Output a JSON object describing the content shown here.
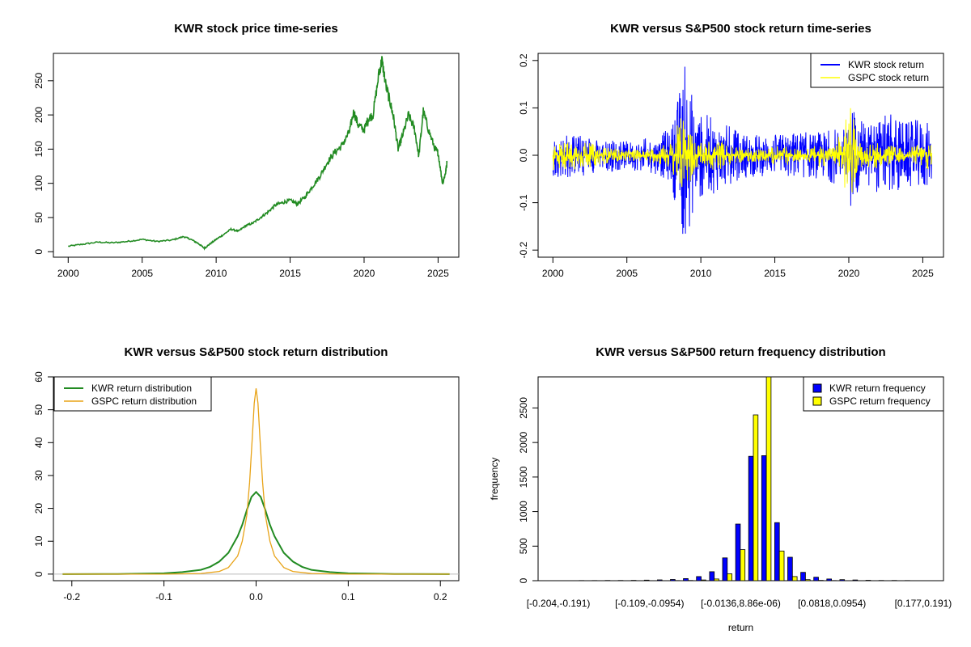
{
  "chart_data": [
    {
      "type": "line",
      "title": "KWR stock price time-series",
      "xlabel": "",
      "ylabel": "",
      "xlim": [
        1999.0,
        2026.4
      ],
      "ylim": [
        -8,
        290
      ],
      "xticks": [
        "2000",
        "2005",
        "2010",
        "2015",
        "2020",
        "2025"
      ],
      "yticks": [
        "0",
        "50",
        "100",
        "150",
        "200",
        "250"
      ],
      "series": [
        {
          "color": "#228B22",
          "x": [
            2000.0,
            2001.0,
            2002.0,
            2003.0,
            2004.0,
            2005.0,
            2006.0,
            2007.0,
            2007.8,
            2008.3,
            2008.8,
            2009.2,
            2009.5,
            2010.0,
            2010.5,
            2011.0,
            2011.5,
            2012.0,
            2012.5,
            2013.0,
            2013.5,
            2014.0,
            2014.5,
            2015.0,
            2015.5,
            2016.0,
            2016.5,
            2017.0,
            2017.5,
            2018.0,
            2018.5,
            2019.0,
            2019.3,
            2019.6,
            2020.0,
            2020.3,
            2020.6,
            2021.0,
            2021.2,
            2021.5,
            2021.8,
            2022.0,
            2022.3,
            2022.6,
            2023.0,
            2023.4,
            2023.7,
            2024.0,
            2024.4,
            2024.8,
            2025.0,
            2025.3,
            2025.5,
            2025.6
          ],
          "y": [
            8,
            11,
            14,
            13,
            15,
            18,
            15,
            17,
            22,
            18,
            12,
            5,
            10,
            18,
            25,
            33,
            30,
            38,
            42,
            50,
            58,
            68,
            72,
            75,
            70,
            80,
            95,
            110,
            130,
            145,
            155,
            175,
            205,
            185,
            178,
            195,
            200,
            260,
            280,
            240,
            215,
            195,
            150,
            170,
            200,
            180,
            140,
            205,
            175,
            150,
            145,
            100,
            115,
            130
          ]
        }
      ]
    },
    {
      "type": "line",
      "title": "KWR versus S&P500 stock return time-series",
      "xlabel": "",
      "ylabel": "",
      "xlim": [
        1999.0,
        2026.4
      ],
      "ylim": [
        -0.215,
        0.215
      ],
      "xticks": [
        "2000",
        "2005",
        "2010",
        "2015",
        "2020",
        "2025"
      ],
      "yticks": [
        "-0.2",
        "-0.1",
        "0.0",
        "0.1",
        "0.2"
      ],
      "legend_position": "top-right",
      "series": [
        {
          "name": "KWR stock return",
          "color": "#0000FF",
          "envelope": [
            [
              2000.0,
              0.045
            ],
            [
              2001.0,
              0.05
            ],
            [
              2002.0,
              0.045
            ],
            [
              2003.0,
              0.035
            ],
            [
              2004.0,
              0.035
            ],
            [
              2005.0,
              0.03
            ],
            [
              2006.0,
              0.035
            ],
            [
              2007.0,
              0.04
            ],
            [
              2008.0,
              0.06
            ],
            [
              2008.7,
              0.17
            ],
            [
              2009.0,
              0.2
            ],
            [
              2009.5,
              0.12
            ],
            [
              2010.0,
              0.09
            ],
            [
              2011.0,
              0.08
            ],
            [
              2012.0,
              0.06
            ],
            [
              2013.0,
              0.05
            ],
            [
              2014.0,
              0.045
            ],
            [
              2015.0,
              0.045
            ],
            [
              2016.0,
              0.05
            ],
            [
              2017.0,
              0.05
            ],
            [
              2018.0,
              0.05
            ],
            [
              2019.0,
              0.06
            ],
            [
              2020.0,
              0.06
            ],
            [
              2020.2,
              0.14
            ],
            [
              2020.5,
              0.08
            ],
            [
              2021.0,
              0.07
            ],
            [
              2022.0,
              0.08
            ],
            [
              2023.0,
              0.09
            ],
            [
              2024.0,
              0.07
            ],
            [
              2025.0,
              0.08
            ],
            [
              2025.6,
              0.06
            ]
          ]
        },
        {
          "name": "GSPC stock return",
          "color": "#FFFF00",
          "envelope": [
            [
              2000.0,
              0.035
            ],
            [
              2001.0,
              0.03
            ],
            [
              2002.0,
              0.03
            ],
            [
              2003.0,
              0.022
            ],
            [
              2004.0,
              0.015
            ],
            [
              2005.0,
              0.012
            ],
            [
              2006.0,
              0.012
            ],
            [
              2007.0,
              0.018
            ],
            [
              2008.0,
              0.03
            ],
            [
              2008.8,
              0.095
            ],
            [
              2009.2,
              0.06
            ],
            [
              2009.6,
              0.035
            ],
            [
              2010.0,
              0.025
            ],
            [
              2011.0,
              0.035
            ],
            [
              2012.0,
              0.02
            ],
            [
              2013.0,
              0.015
            ],
            [
              2014.0,
              0.014
            ],
            [
              2015.0,
              0.02
            ],
            [
              2016.0,
              0.02
            ],
            [
              2017.0,
              0.01
            ],
            [
              2018.0,
              0.025
            ],
            [
              2019.0,
              0.02
            ],
            [
              2020.2,
              0.11
            ],
            [
              2020.5,
              0.04
            ],
            [
              2021.0,
              0.02
            ],
            [
              2022.0,
              0.03
            ],
            [
              2023.0,
              0.02
            ],
            [
              2024.0,
              0.015
            ],
            [
              2025.3,
              0.035
            ],
            [
              2025.6,
              0.02
            ]
          ]
        }
      ]
    },
    {
      "type": "line",
      "title": "KWR versus S&P500 stock return distribution",
      "xlabel": "",
      "ylabel": "",
      "xlim": [
        -0.22,
        0.22
      ],
      "ylim": [
        -2,
        60
      ],
      "xticks": [
        "-0.2",
        "-0.1",
        "0.0",
        "0.1",
        "0.2"
      ],
      "yticks": [
        "0",
        "10",
        "20",
        "30",
        "40",
        "50",
        "60"
      ],
      "legend_position": "top-left",
      "series": [
        {
          "name": "KWR return distribution",
          "color": "#228B22",
          "x": [
            -0.21,
            -0.15,
            -0.1,
            -0.08,
            -0.06,
            -0.05,
            -0.04,
            -0.03,
            -0.02,
            -0.015,
            -0.01,
            -0.005,
            0.0,
            0.005,
            0.01,
            0.015,
            0.02,
            0.03,
            0.04,
            0.05,
            0.06,
            0.08,
            0.1,
            0.15,
            0.21
          ],
          "y": [
            0.0,
            0.05,
            0.25,
            0.6,
            1.3,
            2.2,
            3.8,
            6.5,
            11.5,
            15.0,
            19.5,
            23.5,
            25.0,
            23.5,
            19.5,
            15.0,
            11.5,
            6.5,
            3.8,
            2.2,
            1.3,
            0.6,
            0.25,
            0.05,
            0.0
          ]
        },
        {
          "name": "GSPC return distribution",
          "color": "#E8A317",
          "x": [
            -0.21,
            -0.1,
            -0.06,
            -0.04,
            -0.03,
            -0.02,
            -0.015,
            -0.01,
            -0.007,
            -0.004,
            -0.002,
            0.0,
            0.002,
            0.004,
            0.007,
            0.01,
            0.015,
            0.02,
            0.03,
            0.04,
            0.06,
            0.1,
            0.21
          ],
          "y": [
            0.0,
            0.0,
            0.2,
            0.8,
            2.0,
            5.5,
            10.0,
            18.0,
            28.0,
            42.0,
            52.0,
            56.5,
            52.0,
            42.0,
            28.0,
            18.0,
            10.0,
            5.5,
            2.0,
            0.8,
            0.2,
            0.0,
            0.0
          ]
        }
      ]
    },
    {
      "type": "bar",
      "title": "KWR versus S&P500 return frequency distribution",
      "xlabel": "return",
      "ylabel": "frequency",
      "ylim": [
        0,
        2950
      ],
      "yticks": [
        "0",
        "500",
        "1000",
        "1500",
        "2000",
        "2500"
      ],
      "category_labels_shown": [
        "[-0.204,-0.191)",
        "[-0.109,-0.0954)",
        "[-0.0136,8.86e-06)",
        "[0.0818,0.0954)",
        "[0.177,0.191)"
      ],
      "legend_position": "top-right",
      "bin_count": 29,
      "series": [
        {
          "name": "KWR return frequency",
          "color": "#0000FF",
          "values": [
            1,
            1,
            2,
            2,
            3,
            3,
            5,
            8,
            12,
            18,
            30,
            60,
            130,
            330,
            820,
            1800,
            1810,
            840,
            340,
            120,
            50,
            25,
            15,
            10,
            6,
            4,
            3,
            2,
            1
          ]
        },
        {
          "name": "GSPC return frequency",
          "color": "#FFFF00",
          "values": [
            0,
            0,
            0,
            0,
            0,
            0,
            0,
            1,
            1,
            2,
            4,
            10,
            25,
            100,
            450,
            2400,
            2950,
            430,
            60,
            15,
            5,
            2,
            1,
            1,
            0,
            0,
            0,
            0,
            0
          ]
        }
      ]
    }
  ]
}
